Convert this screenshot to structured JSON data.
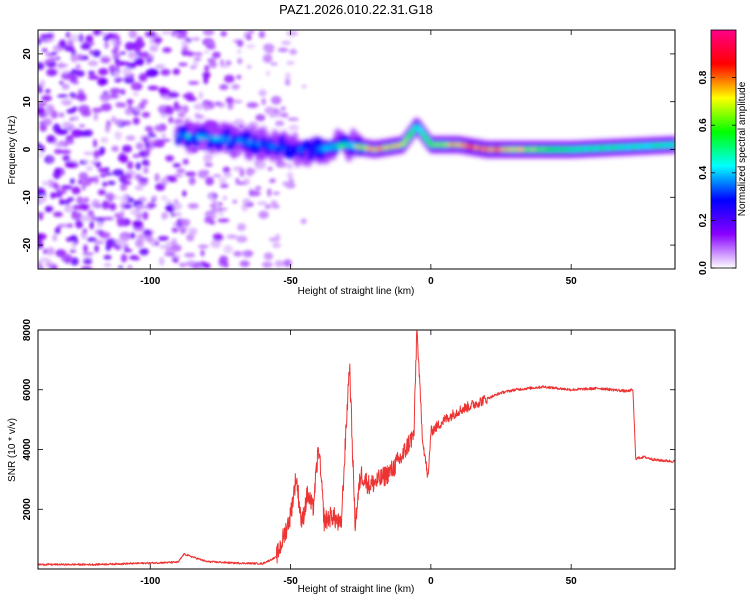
{
  "title": "PAZ1.2026.010.22.31.G18",
  "chart_data": [
    {
      "type": "heatmap",
      "xlabel": "Height of straight line (km)",
      "ylabel": "Frequency (Hz)",
      "xlim": [
        -140,
        87
      ],
      "ylim": [
        -25,
        25
      ],
      "xticks": [
        -100,
        -50,
        0,
        50
      ],
      "yticks": [
        -20,
        -10,
        0,
        10,
        20
      ],
      "xtick_labels": [
        "-100",
        "-50",
        "0",
        "50"
      ],
      "ytick_labels": [
        "-20",
        "-10",
        "0",
        "10",
        "20"
      ],
      "colorbar": {
        "label": "Normalized spectral amplitude",
        "range": [
          0,
          1
        ],
        "ticks": [
          0,
          0.2,
          0.4,
          0.6,
          0.8
        ],
        "tick_labels": [
          "0.0",
          "0.2",
          "0.4",
          "0.6",
          "0.8"
        ],
        "colors": [
          "#ffffff",
          "#8800ff",
          "#0000ff",
          "#00ffff",
          "#00ff00",
          "#ffff00",
          "#ff0000",
          "#ff0088"
        ]
      },
      "ridge": {
        "x": [
          -90,
          -70,
          -50,
          -40,
          -30,
          -20,
          -10,
          -5,
          0,
          10,
          20,
          30,
          50,
          87
        ],
        "frequency": [
          3,
          2,
          0,
          0,
          1,
          0,
          1,
          5,
          1,
          1,
          0,
          0,
          0,
          1
        ],
        "amplitude": [
          0.45,
          0.4,
          0.35,
          0.35,
          0.6,
          0.8,
          0.7,
          0.45,
          0.6,
          0.8,
          0.85,
          0.75,
          0.5,
          0.5
        ]
      }
    },
    {
      "type": "line",
      "xlabel": "Height of straight line (km)",
      "ylabel": "SNR (10 * v/v)",
      "xlim": [
        -140,
        87
      ],
      "ylim": [
        0,
        8000
      ],
      "xticks": [
        -100,
        -50,
        0,
        50
      ],
      "yticks": [
        2000,
        4000,
        6000,
        8000
      ],
      "xtick_labels": [
        "-100",
        "-50",
        "0",
        "50"
      ],
      "ytick_labels": [
        "2000",
        "4000",
        "6000",
        "8000"
      ],
      "color": "#ee3333",
      "x": [
        -140,
        -120,
        -100,
        -90,
        -88,
        -80,
        -70,
        -60,
        -55,
        -52,
        -50,
        -48,
        -46,
        -44,
        -42,
        -40,
        -38,
        -35,
        -32,
        -29,
        -27,
        -25,
        -22,
        -18,
        -14,
        -10,
        -8,
        -6,
        -5,
        -3,
        -1,
        0,
        5,
        10,
        15,
        20,
        25,
        30,
        40,
        50,
        60,
        70,
        72,
        73,
        76,
        80,
        87
      ],
      "y": [
        150,
        150,
        200,
        230,
        500,
        250,
        200,
        180,
        400,
        1200,
        1800,
        3100,
        1500,
        2500,
        2000,
        4100,
        1600,
        1800,
        1400,
        6900,
        1500,
        3200,
        2800,
        3000,
        3300,
        3800,
        4200,
        4500,
        8100,
        4400,
        3000,
        4600,
        5000,
        5300,
        5500,
        5700,
        5900,
        6000,
        6100,
        6000,
        6050,
        5950,
        6000,
        3700,
        3750,
        3650,
        3600
      ]
    }
  ]
}
